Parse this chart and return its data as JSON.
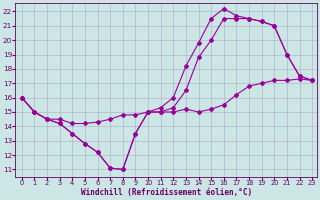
{
  "bg_color": "#cce5e5",
  "line_color": "#990099",
  "grid_color": "#aaaacc",
  "xlabel": "Windchill (Refroidissement éolien,°C)",
  "xlabel_color": "#660066",
  "tick_color": "#660066",
  "xlim_min": -0.5,
  "xlim_max": 23.4,
  "ylim_min": 10.5,
  "ylim_max": 22.6,
  "yticks": [
    11,
    12,
    13,
    14,
    15,
    16,
    17,
    18,
    19,
    20,
    21,
    22
  ],
  "xticks": [
    0,
    1,
    2,
    3,
    4,
    5,
    6,
    7,
    8,
    9,
    10,
    11,
    12,
    13,
    14,
    15,
    16,
    17,
    18,
    19,
    20,
    21,
    22,
    23
  ],
  "line1_x": [
    0,
    1,
    2,
    3,
    4,
    5,
    6,
    7,
    8,
    9,
    10,
    11,
    12,
    13,
    14,
    15,
    16,
    17,
    18,
    19,
    20,
    21,
    22,
    23
  ],
  "line1_y": [
    16.0,
    15.0,
    14.5,
    14.2,
    13.5,
    12.8,
    12.2,
    11.1,
    11.0,
    13.5,
    15.0,
    15.0,
    15.3,
    16.5,
    18.8,
    20.0,
    21.5,
    21.5,
    21.5,
    21.3,
    21.0,
    19.0,
    17.5,
    17.2
  ],
  "line2_x": [
    0,
    1,
    2,
    3,
    4,
    5,
    6,
    7,
    8,
    9,
    10,
    11,
    12,
    13,
    14,
    15,
    16,
    17,
    18,
    19,
    20,
    21,
    22,
    23
  ],
  "line2_y": [
    16.0,
    15.0,
    14.5,
    14.2,
    13.5,
    12.8,
    12.2,
    11.1,
    11.0,
    13.5,
    15.0,
    15.3,
    16.0,
    18.2,
    19.8,
    21.5,
    22.2,
    21.7,
    21.5,
    21.3,
    21.0,
    19.0,
    17.5,
    17.2
  ],
  "line3_x": [
    0,
    1,
    2,
    3,
    4,
    5,
    6,
    7,
    8,
    9,
    10,
    11,
    12,
    13,
    14,
    15,
    16,
    17,
    18,
    19,
    20,
    21,
    22,
    23
  ],
  "line3_y": [
    16.0,
    15.0,
    14.5,
    14.5,
    14.2,
    14.2,
    14.3,
    14.5,
    14.8,
    14.8,
    15.0,
    15.0,
    15.0,
    15.2,
    15.0,
    15.2,
    15.5,
    16.2,
    16.8,
    17.0,
    17.2,
    17.2,
    17.3,
    17.2
  ]
}
